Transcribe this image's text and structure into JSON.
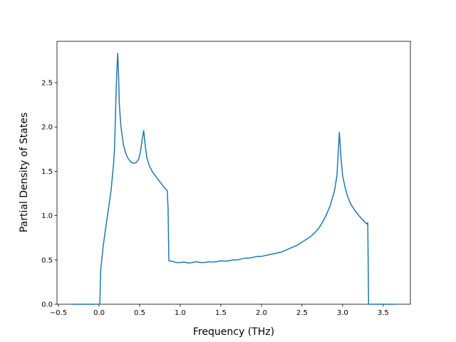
{
  "chart_data": {
    "type": "line",
    "x_label": "Frequency (THz)",
    "y_label": "Partial Density of States",
    "x": [
      -0.33,
      0.0,
      0.01,
      0.02,
      0.05,
      0.08,
      0.12,
      0.15,
      0.18,
      0.19,
      0.2,
      0.21,
      0.22,
      0.23,
      0.24,
      0.25,
      0.27,
      0.3,
      0.33,
      0.36,
      0.4,
      0.43,
      0.46,
      0.49,
      0.51,
      0.53,
      0.55,
      0.57,
      0.59,
      0.62,
      0.66,
      0.7,
      0.75,
      0.8,
      0.84,
      0.85,
      0.86,
      0.9,
      0.95,
      1.0,
      1.05,
      1.1,
      1.15,
      1.2,
      1.25,
      1.3,
      1.35,
      1.4,
      1.45,
      1.5,
      1.55,
      1.6,
      1.65,
      1.7,
      1.75,
      1.8,
      1.85,
      1.9,
      1.95,
      2.0,
      2.05,
      2.1,
      2.15,
      2.2,
      2.25,
      2.3,
      2.35,
      2.4,
      2.45,
      2.5,
      2.55,
      2.6,
      2.65,
      2.7,
      2.75,
      2.8,
      2.85,
      2.9,
      2.93,
      2.96,
      2.98,
      3.0,
      3.03,
      3.06,
      3.1,
      3.15,
      3.2,
      3.25,
      3.28,
      3.3,
      3.31,
      3.32,
      3.65
    ],
    "series": [
      {
        "color": "#1f77b4",
        "values": [
          0,
          0,
          0.02,
          0.38,
          0.65,
          0.85,
          1.1,
          1.3,
          1.6,
          1.75,
          2.05,
          2.4,
          2.65,
          2.83,
          2.6,
          2.25,
          2.0,
          1.8,
          1.7,
          1.64,
          1.6,
          1.59,
          1.6,
          1.64,
          1.72,
          1.85,
          1.96,
          1.78,
          1.65,
          1.56,
          1.49,
          1.44,
          1.38,
          1.32,
          1.28,
          1.08,
          0.49,
          0.485,
          0.47,
          0.47,
          0.475,
          0.465,
          0.47,
          0.48,
          0.47,
          0.47,
          0.48,
          0.475,
          0.48,
          0.49,
          0.485,
          0.49,
          0.5,
          0.5,
          0.51,
          0.52,
          0.52,
          0.53,
          0.54,
          0.54,
          0.55,
          0.56,
          0.57,
          0.58,
          0.59,
          0.61,
          0.63,
          0.65,
          0.67,
          0.7,
          0.73,
          0.76,
          0.8,
          0.85,
          0.92,
          1.01,
          1.12,
          1.28,
          1.45,
          1.94,
          1.65,
          1.45,
          1.32,
          1.22,
          1.13,
          1.06,
          1.0,
          0.95,
          0.92,
          0.905,
          0.92,
          0,
          0
        ]
      }
    ],
    "xlim": [
      -0.518,
      3.835
    ],
    "ylim": [
      0,
      2.966
    ],
    "xticks": [
      {
        "value": -0.5,
        "label": "−0.5"
      },
      {
        "value": 0,
        "label": "0.0"
      },
      0.5,
      {
        "value": 1,
        "label": "1.0"
      },
      1.5,
      {
        "value": 2,
        "label": "2.0"
      },
      2.5,
      {
        "value": 3,
        "label": "3.0"
      },
      3.5
    ],
    "yticks": [
      {
        "value": 0,
        "label": "0.0"
      },
      0.5,
      {
        "value": 1,
        "label": "1.0"
      },
      1.5,
      {
        "value": 2,
        "label": "2.0"
      },
      2.5
    ]
  }
}
